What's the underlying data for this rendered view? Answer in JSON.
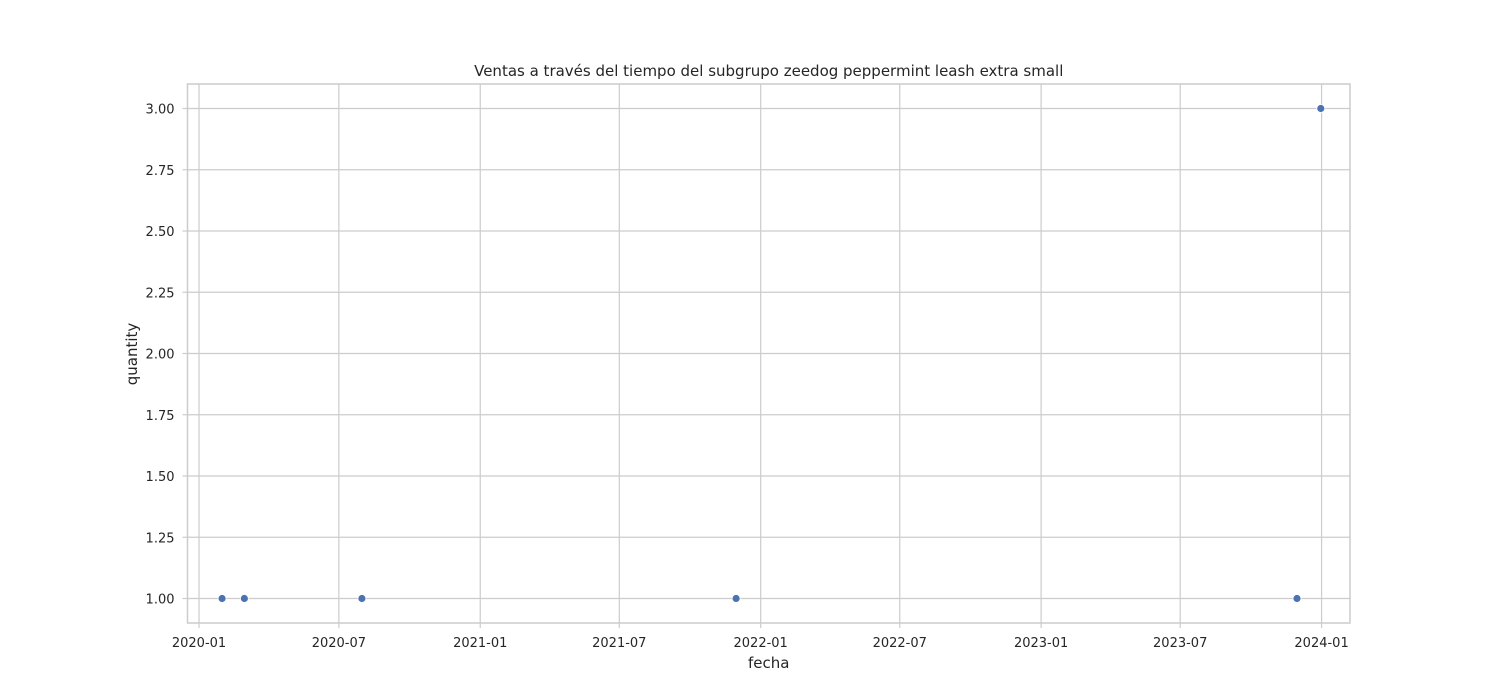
{
  "chart_data": {
    "type": "scatter",
    "title": "Ventas a través del tiempo del subgrupo zeedog peppermint leash extra small",
    "xlabel": "fecha",
    "ylabel": "quantity",
    "xlim": [
      "2019-12-17",
      "2024-02-07"
    ],
    "ylim": [
      0.9,
      3.1
    ],
    "x_ticks": [
      "2020-01",
      "2020-07",
      "2021-01",
      "2021-07",
      "2022-01",
      "2022-07",
      "2023-01",
      "2023-07",
      "2024-01"
    ],
    "y_ticks": [
      "1.00",
      "1.25",
      "1.50",
      "1.75",
      "2.00",
      "2.25",
      "2.50",
      "2.75",
      "3.00"
    ],
    "grid": true,
    "marker_color": "#4c72b0",
    "points": [
      {
        "x": "2020-01-31",
        "y": 1
      },
      {
        "x": "2020-02-29",
        "y": 1
      },
      {
        "x": "2020-07-31",
        "y": 1
      },
      {
        "x": "2021-11-30",
        "y": 1
      },
      {
        "x": "2023-11-30",
        "y": 1
      },
      {
        "x": "2023-12-31",
        "y": 3
      }
    ]
  }
}
